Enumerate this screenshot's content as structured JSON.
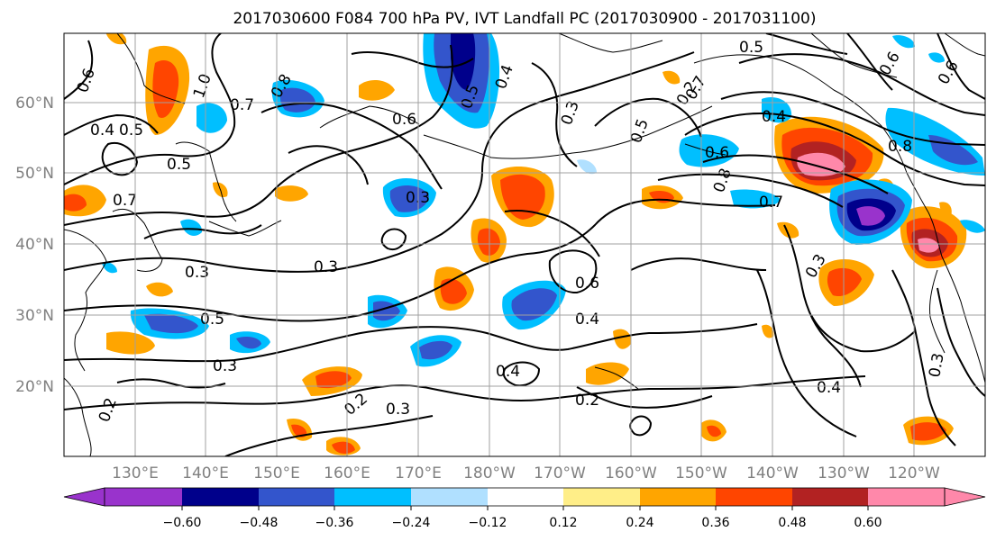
{
  "title": "2017030600 F084 700 hPa PV, IVT Landfall PC (2017030900 - 2017031100)",
  "lat_labels": [
    "60°N",
    "50°N",
    "40°N",
    "30°N",
    "20°N"
  ],
  "lon_labels": [
    "130°E",
    "140°E",
    "150°E",
    "160°E",
    "170°E",
    "180°W",
    "170°W",
    "160°W",
    "150°W",
    "140°W",
    "130°W",
    "120°W"
  ],
  "colorbar": {
    "colors": [
      "#9933cc",
      "#00008b",
      "#3355cc",
      "#00bfff",
      "#b0e0ff",
      "#ffffff",
      "#ffee88",
      "#ffa500",
      "#ff4500",
      "#b22222",
      "#ff88aa"
    ],
    "tick_labels": [
      "−0.60",
      "−0.48",
      "−0.36",
      "−0.24",
      "−0.12",
      "0.12",
      "0.24",
      "0.36",
      "0.48",
      "0.60"
    ]
  },
  "contour_labels": [
    "0.6",
    "0.4",
    "0.5",
    "1.0",
    "0.7",
    "0.8",
    "0.6",
    "0.5",
    "0.3",
    "0.7",
    "0.4",
    "0.5",
    "0.3",
    "0.3",
    "0.5",
    "0.3",
    "0.3",
    "0.2",
    "0.3",
    "0.2",
    "0.4",
    "0.4",
    "0.6",
    "0.2",
    "0.5",
    "0.4",
    "0.6",
    "0.8",
    "0.7",
    "0.8",
    "0.6",
    "0.6",
    "0.3",
    "0.4",
    "0.3",
    "0.2",
    "0.5",
    "0.7"
  ],
  "colors": {
    "contour": "#000000",
    "grid": "#a0a0a0",
    "axis_label": "#808080"
  }
}
